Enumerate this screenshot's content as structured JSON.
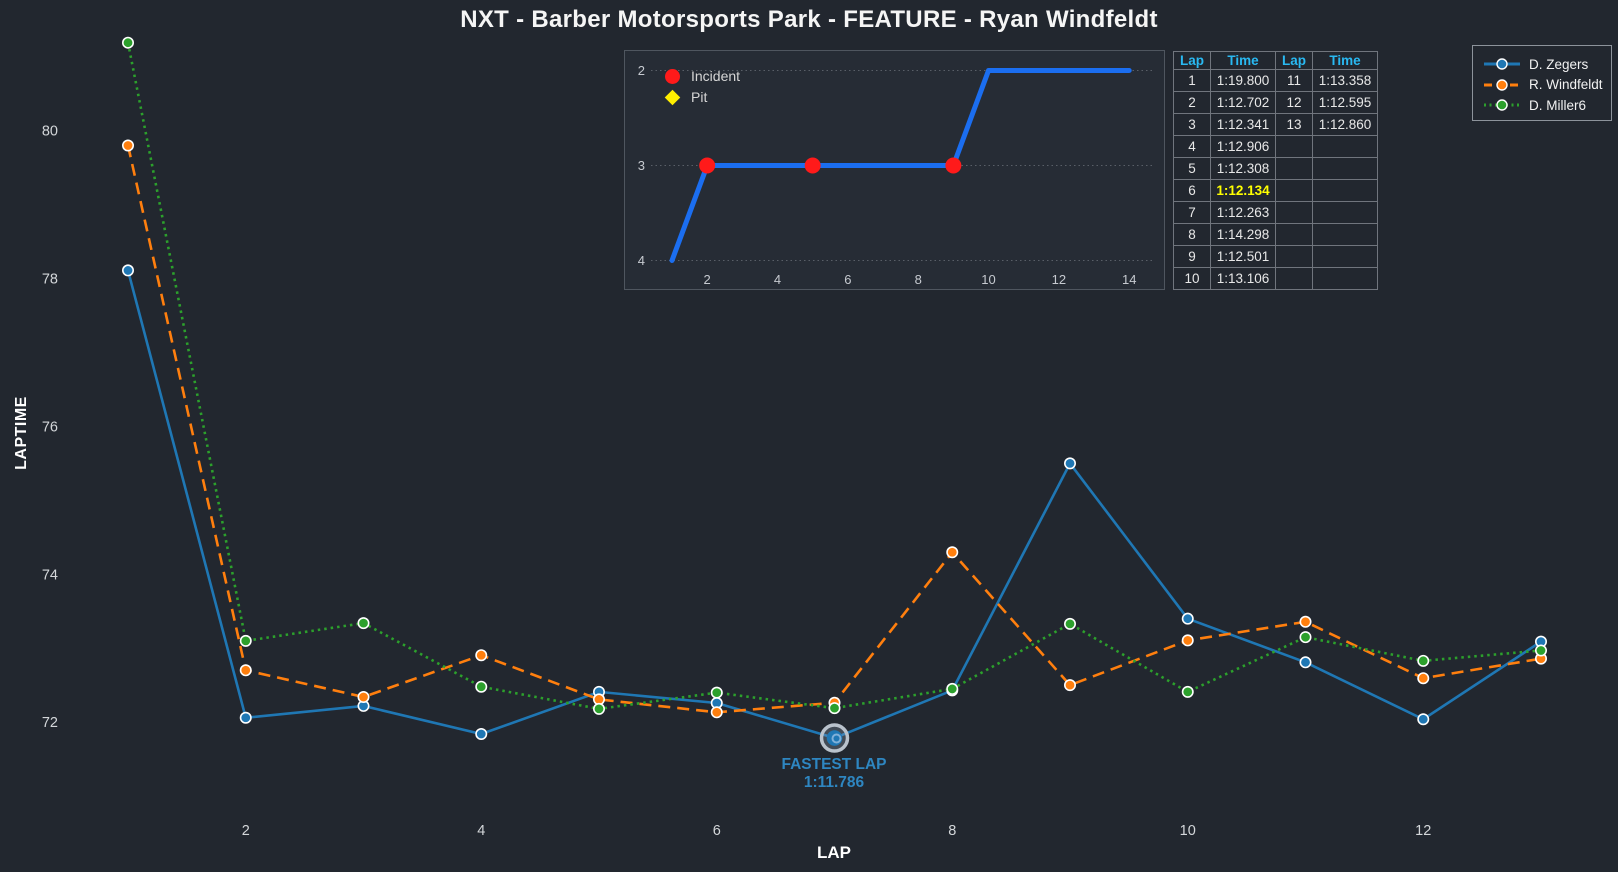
{
  "title": "NXT - Barber Motorsports Park - FEATURE - Ryan Windfeldt",
  "colors": {
    "background": "#22272f",
    "inset_background": "#262c35",
    "tick_text": "#d4d7da",
    "table_header_cyan": "#29b9f2",
    "fastest_highlight_yellow": "#ffff00",
    "annotation_blue": "#2e86c1",
    "zegers_blue": "#1f77b4",
    "windfeldt_orange": "#ff7f0e",
    "miller_green": "#2ca02c",
    "position_line_blue": "#1b6ef0",
    "incident_red": "#ff1a1a",
    "pit_yellow": "#ffee00"
  },
  "chart_data": [
    {
      "type": "line",
      "title": "",
      "xlabel": "LAP",
      "ylabel": "LAPTIME",
      "x": [
        1,
        2,
        3,
        4,
        5,
        6,
        7,
        8,
        9,
        10,
        11,
        12,
        13
      ],
      "xticks": [
        2,
        4,
        6,
        8,
        10,
        12
      ],
      "yticks": [
        72,
        74,
        76,
        78,
        80
      ],
      "xlim": [
        0.72,
        13.66
      ],
      "ylim": [
        71.1,
        81.3
      ],
      "grid": false,
      "legend_position": "top-right",
      "series": [
        {
          "name": "D. Zegers",
          "color": "#1f77b4",
          "line_style": "solid",
          "values": [
            78.11,
            72.06,
            72.22,
            71.84,
            72.41,
            72.26,
            71.786,
            72.43,
            75.5,
            73.4,
            72.81,
            72.04,
            73.09
          ]
        },
        {
          "name": "R. Windfeldt",
          "color": "#ff7f0e",
          "line_style": "dashed",
          "values": [
            79.8,
            72.702,
            72.341,
            72.906,
            72.308,
            72.134,
            72.263,
            74.298,
            72.501,
            73.106,
            73.358,
            72.595,
            72.86
          ]
        },
        {
          "name": "D. Miller6",
          "color": "#2ca02c",
          "line_style": "dotted",
          "values": [
            81.19,
            73.1,
            73.34,
            72.48,
            72.18,
            72.4,
            72.19,
            72.45,
            73.33,
            72.41,
            73.15,
            72.83,
            72.97
          ]
        }
      ],
      "annotation": {
        "text": [
          "FASTEST LAP",
          "1:11.786"
        ],
        "x": 7,
        "y": 71.786,
        "series": "D. Zegers"
      }
    },
    {
      "type": "line",
      "title": "",
      "points": [
        [
          1,
          4
        ],
        [
          2,
          3
        ],
        [
          9,
          3
        ],
        [
          10,
          2
        ],
        [
          14,
          2
        ]
      ],
      "line_color": "#1b6ef0",
      "incidents": [
        [
          2,
          3
        ],
        [
          5,
          3
        ],
        [
          9,
          3
        ]
      ],
      "pits": [],
      "xticks": [
        2,
        4,
        6,
        8,
        10,
        12,
        14
      ],
      "yticks": [
        2,
        3,
        4
      ],
      "y_inverted": true,
      "legend": [
        {
          "label": "Incident",
          "marker": "circle",
          "color": "#ff1a1a"
        },
        {
          "label": "Pit",
          "marker": "diamond",
          "color": "#ffee00"
        }
      ]
    }
  ],
  "table": {
    "headers": [
      "Lap",
      "Time",
      "Lap",
      "Time"
    ],
    "rows": [
      [
        "1",
        "1:19.800",
        "11",
        "1:13.358"
      ],
      [
        "2",
        "1:12.702",
        "12",
        "1:12.595"
      ],
      [
        "3",
        "1:12.341",
        "13",
        "1:12.860"
      ],
      [
        "4",
        "1:12.906",
        "",
        ""
      ],
      [
        "5",
        "1:12.308",
        "",
        ""
      ],
      [
        "6",
        "1:12.134",
        "",
        ""
      ],
      [
        "7",
        "1:12.263",
        "",
        ""
      ],
      [
        "8",
        "1:14.298",
        "",
        ""
      ],
      [
        "9",
        "1:12.501",
        "",
        ""
      ],
      [
        "10",
        "1:13.106",
        "",
        ""
      ]
    ],
    "fastest_lap": "6",
    "fastest_time": "1:12.134"
  }
}
